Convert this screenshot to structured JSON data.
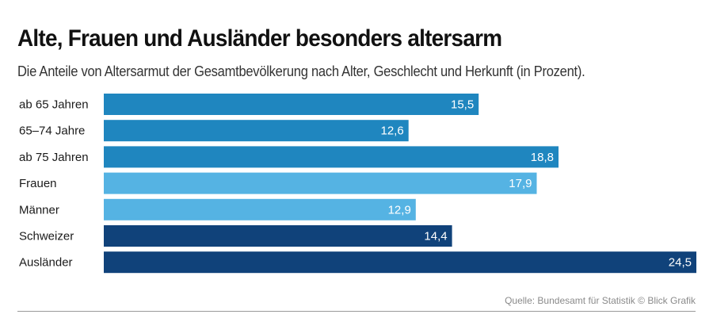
{
  "chart_data": {
    "type": "bar",
    "orientation": "horizontal",
    "title": "Alte, Frauen und Ausländer besonders altersarm",
    "subtitle": "Die Anteile von Altersarmut der Gesamtbevölkerung nach Alter, Geschlecht und Herkunft (in Prozent).",
    "categories": [
      "ab 65 Jahren",
      "65–74 Jahre",
      "ab 75 Jahren",
      "Frauen",
      "Männer",
      "Schweizer",
      "Ausländer"
    ],
    "values": [
      15.5,
      12.6,
      18.8,
      17.9,
      12.9,
      14.4,
      24.5
    ],
    "value_labels": [
      "15,5",
      "12,6",
      "18,8",
      "17,9",
      "12,9",
      "14,4",
      "24,5"
    ],
    "groups": [
      "Alter",
      "Alter",
      "Alter",
      "Geschlecht",
      "Geschlecht",
      "Herkunft",
      "Herkunft"
    ],
    "group_colors": {
      "Alter": "#1f86bf",
      "Geschlecht": "#55b3e3",
      "Herkunft": "#10427a"
    },
    "xlim": [
      0,
      24.5
    ],
    "grid": false,
    "legend": "none"
  },
  "source": "Quelle: Bundesamt für Statistik © Blick Grafik"
}
